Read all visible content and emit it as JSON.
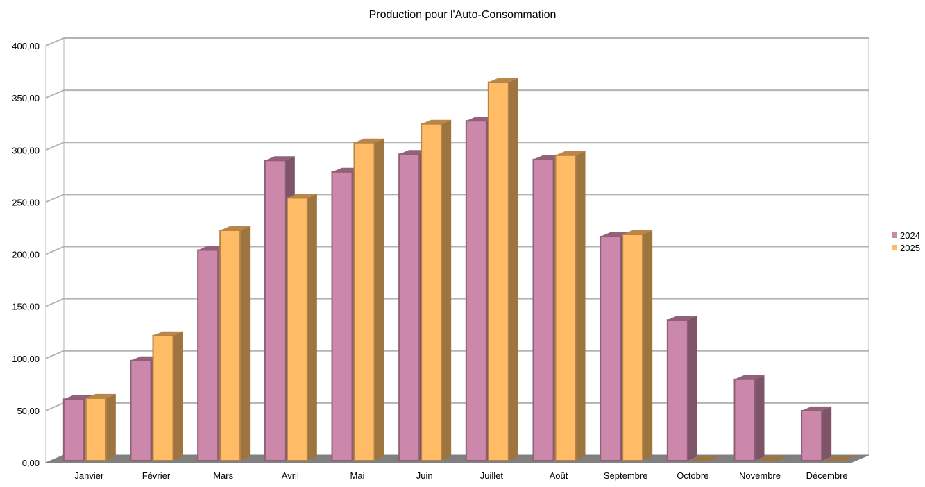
{
  "chart_data": {
    "type": "bar",
    "title": "Production pour l'Auto-Consommation",
    "xlabel": "",
    "ylabel": "",
    "ylim": [
      0,
      400
    ],
    "yticks": [
      "0,00",
      "50,00",
      "100,00",
      "150,00",
      "200,00",
      "250,00",
      "300,00",
      "350,00",
      "400,00"
    ],
    "categories": [
      "Janvier",
      "Février",
      "Mars",
      "Avril",
      "Mai",
      "Juin",
      "Juillet",
      "Août",
      "Septembre",
      "Octobre",
      "Novembre",
      "Décembre"
    ],
    "series": [
      {
        "name": "2024",
        "color": "#cc88aa",
        "values": [
          59,
          96,
          202,
          288,
          277,
          294,
          326,
          289,
          215,
          135,
          78,
          48
        ]
      },
      {
        "name": "2025",
        "color": "#ffbb66",
        "values": [
          60,
          120,
          221,
          252,
          305,
          323,
          363,
          293,
          217,
          0,
          0,
          0
        ]
      }
    ],
    "grid": true,
    "legend": "right",
    "render_3d": true
  }
}
